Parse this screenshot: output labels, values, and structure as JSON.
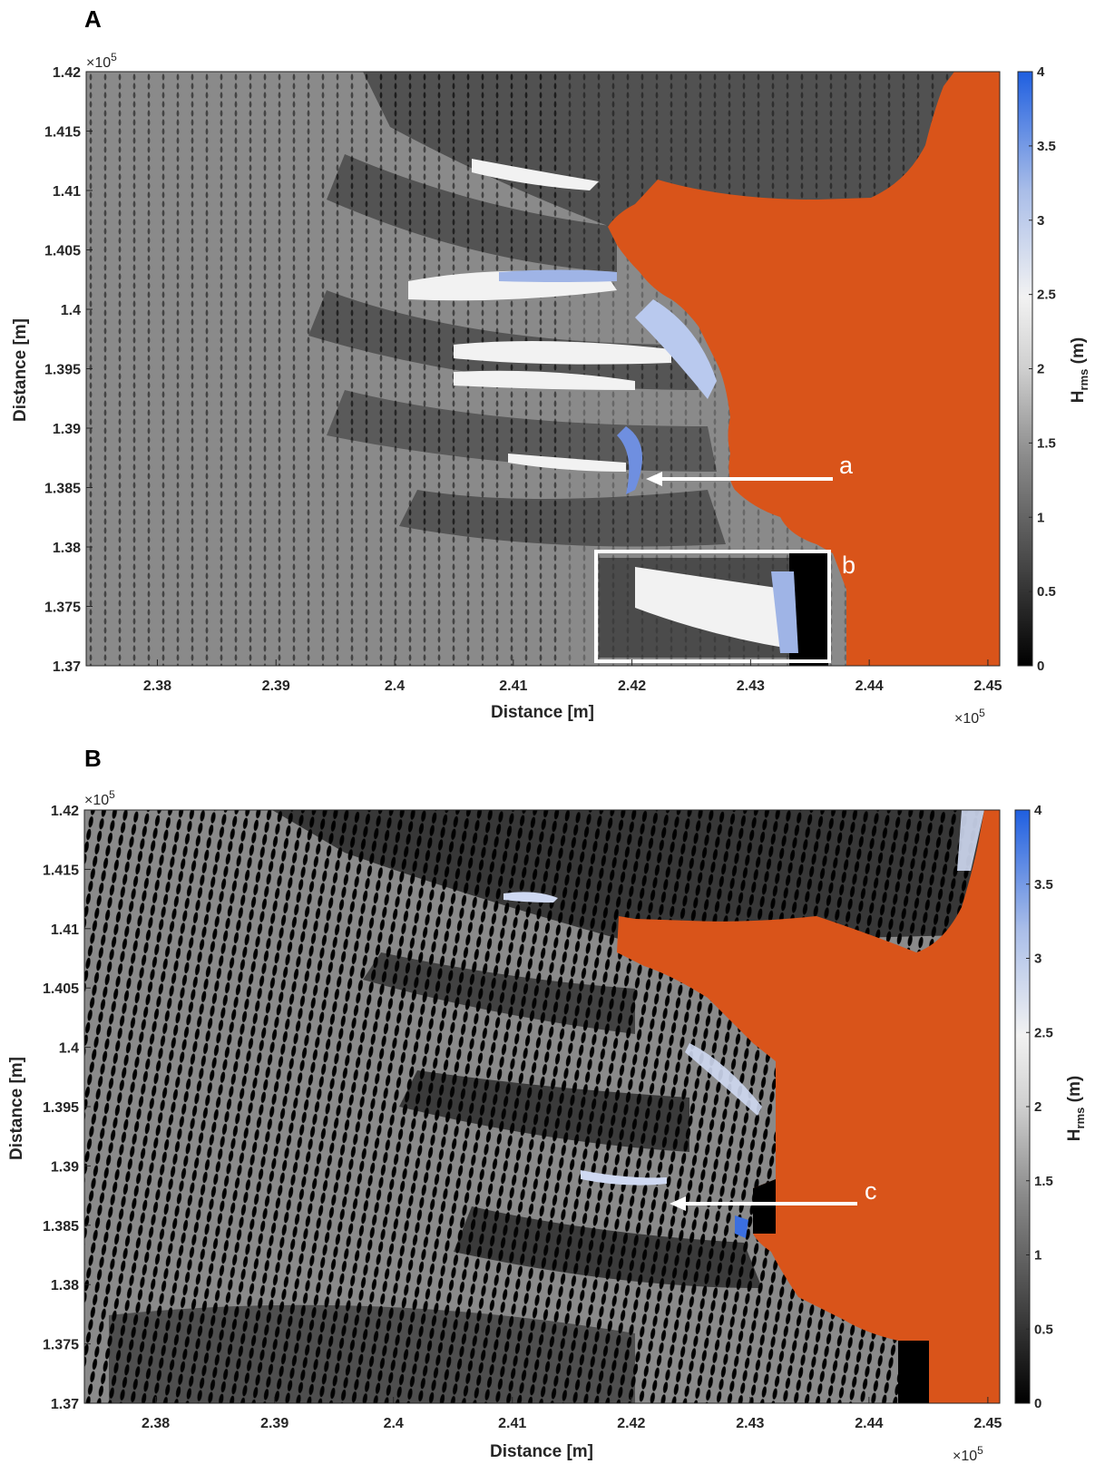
{
  "chart_data": [
    {
      "type": "heatmap",
      "panel_label": "A",
      "xlabel": "Distance [m]",
      "ylabel": "Distance [m]",
      "x_multiplier": "×10",
      "x_exponent": "5",
      "y_multiplier": "×10",
      "y_exponent": "5",
      "xlim": [
        2.374,
        2.451
      ],
      "ylim": [
        1.37,
        1.42
      ],
      "x_ticks": [
        "2.38",
        "2.39",
        "2.4",
        "2.41",
        "2.42",
        "2.43",
        "2.44",
        "2.45"
      ],
      "y_ticks": [
        "1.42",
        "1.415",
        "1.41",
        "1.405",
        "1.4",
        "1.395",
        "1.39",
        "1.385",
        "1.38",
        "1.375",
        "1.37"
      ],
      "colorbar": {
        "label_main": "H",
        "label_sub": "rms",
        "label_unit": " (m)",
        "ticks": [
          "4",
          "3.5",
          "3",
          "2.5",
          "2",
          "1.5",
          "1",
          "0.5",
          "0"
        ],
        "range": [
          0,
          4
        ],
        "colors": [
          "#000000",
          "#8a8a8a",
          "#f2f2f2",
          "#1f5fe0"
        ]
      },
      "land_color": "#d9541a",
      "annotations": [
        {
          "text": "a",
          "arrow_from": [
            2.4262,
            1.3863
          ],
          "arrow_to": [
            2.4212,
            1.3863
          ]
        },
        {
          "text": "b",
          "box": [
            2.4167,
            1.3705,
            2.4363,
            1.3797
          ]
        }
      ]
    },
    {
      "type": "heatmap",
      "panel_label": "B",
      "xlabel": "Distance [m]",
      "ylabel": "Distance [m]",
      "x_multiplier": "×10",
      "x_exponent": "5",
      "y_multiplier": "×10",
      "y_exponent": "5",
      "xlim": [
        2.374,
        2.451
      ],
      "ylim": [
        1.37,
        1.42
      ],
      "x_ticks": [
        "2.38",
        "2.39",
        "2.4",
        "2.41",
        "2.42",
        "2.43",
        "2.44",
        "2.45"
      ],
      "y_ticks": [
        "1.42",
        "1.415",
        "1.41",
        "1.405",
        "1.4",
        "1.395",
        "1.39",
        "1.385",
        "1.38",
        "1.375",
        "1.37"
      ],
      "colorbar": {
        "label_main": "H",
        "label_sub": "rms",
        "label_unit": " (m)",
        "ticks": [
          "4",
          "3.5",
          "3",
          "2.5",
          "2",
          "1.5",
          "1",
          "0.5",
          "0"
        ],
        "range": [
          0,
          4
        ],
        "colors": [
          "#000000",
          "#8a8a8a",
          "#f2f2f2",
          "#1f5fe0"
        ]
      },
      "land_color": "#d9541a",
      "annotations": [
        {
          "text": "c",
          "arrow_from": [
            2.4416,
            1.3867
          ],
          "arrow_to": [
            2.4235,
            1.3867
          ]
        }
      ]
    }
  ]
}
